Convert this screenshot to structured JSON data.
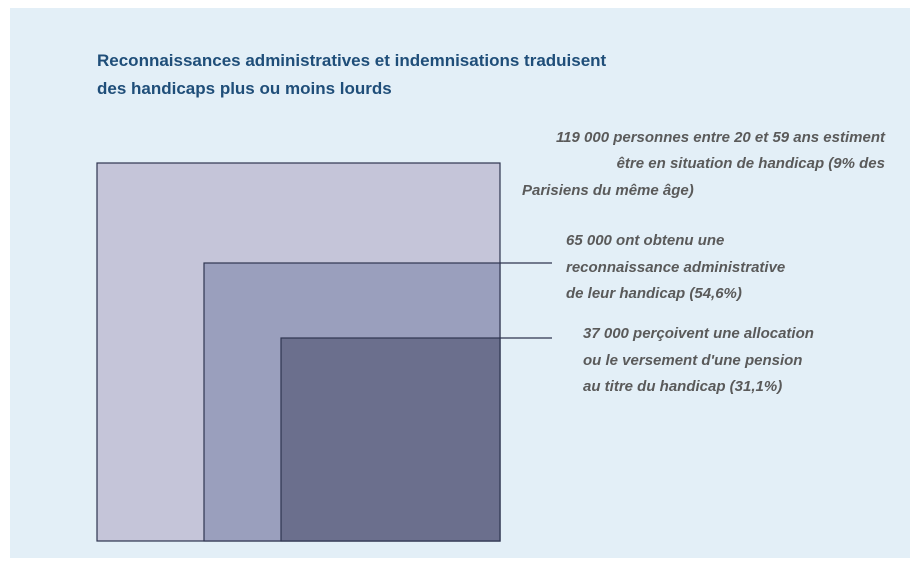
{
  "title": [
    "Reconnaissances administratives et indemnisations traduisent",
    "des handicaps plus ou moins lourds"
  ],
  "levels": [
    {
      "lines": [
        "119 000 personnes entre 20 et 59 ans estiment",
        "être en situation de handicap (9% des",
        "Parisiens du même âge)"
      ]
    },
    {
      "lines": [
        "65 000 ont obtenu une",
        "reconnaissance administrative",
        "de leur handicap (54,6%)"
      ]
    },
    {
      "lines": [
        "37 000 perçoivent une allocation",
        "ou le versement d'une pension",
        "au titre du handicap (31,1%)"
      ]
    }
  ]
}
